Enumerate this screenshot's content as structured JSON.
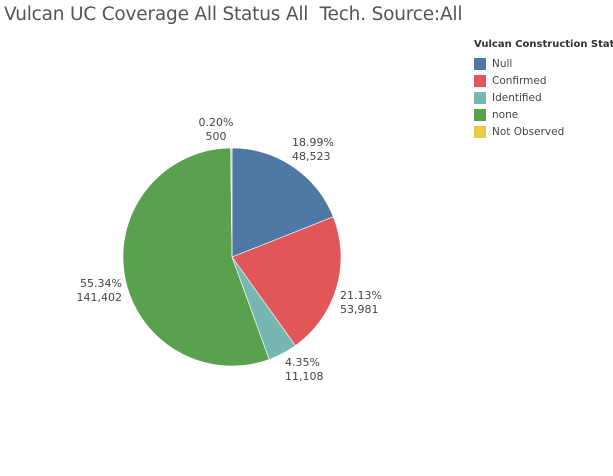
{
  "chart_data": {
    "type": "pie",
    "title": "Vulcan UC Coverage All Status All  Tech. Source:All",
    "legend_title": "Vulcan Construction Status",
    "legend_position": "top-right",
    "slices": [
      {
        "name": "Null",
        "value": 48523,
        "percent": "18.99%",
        "value_label": "48,523",
        "color": "#4e79a7"
      },
      {
        "name": "Confirmed",
        "value": 53981,
        "percent": "21.13%",
        "value_label": "53,981",
        "color": "#e15759"
      },
      {
        "name": "Identified",
        "value": 11108,
        "percent": "4.35%",
        "value_label": "11,108",
        "color": "#76b7b2"
      },
      {
        "name": "none",
        "value": 141402,
        "percent": "55.34%",
        "value_label": "141,402",
        "color": "#59a14f"
      },
      {
        "name": "Not Observed",
        "value": 500,
        "percent": "0.20%",
        "value_label": "500",
        "color": "#edc948"
      }
    ]
  }
}
